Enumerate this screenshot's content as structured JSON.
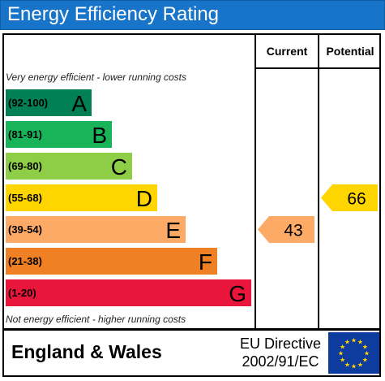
{
  "header": {
    "title": "Energy Efficiency Rating"
  },
  "columns": {
    "current": "Current",
    "potential": "Potential"
  },
  "notes": {
    "top": "Very energy efficient - lower running costs",
    "bottom": "Not energy efficient - higher running costs"
  },
  "chart_data": {
    "type": "bar",
    "title": "Energy Efficiency Rating",
    "bands": [
      {
        "range": "(92-100)",
        "letter": "A",
        "color": "#008054"
      },
      {
        "range": "(81-91)",
        "letter": "B",
        "color": "#19b459"
      },
      {
        "range": "(69-80)",
        "letter": "C",
        "color": "#8dce46"
      },
      {
        "range": "(55-68)",
        "letter": "D",
        "color": "#ffd500"
      },
      {
        "range": "(39-54)",
        "letter": "E",
        "color": "#fcaa65"
      },
      {
        "range": "(21-38)",
        "letter": "F",
        "color": "#ef8023"
      },
      {
        "range": "(1-20)",
        "letter": "G",
        "color": "#e9153b"
      }
    ],
    "current": {
      "value": 43,
      "band": "E",
      "color": "#fcaa65"
    },
    "potential": {
      "value": 66,
      "band": "D",
      "color": "#ffd500"
    }
  },
  "footer": {
    "region": "England & Wales",
    "directive_line1": "EU Directive",
    "directive_line2": "2002/91/EC"
  },
  "flag": {
    "background": "#0d3b9e",
    "stars": "#ffd500"
  }
}
